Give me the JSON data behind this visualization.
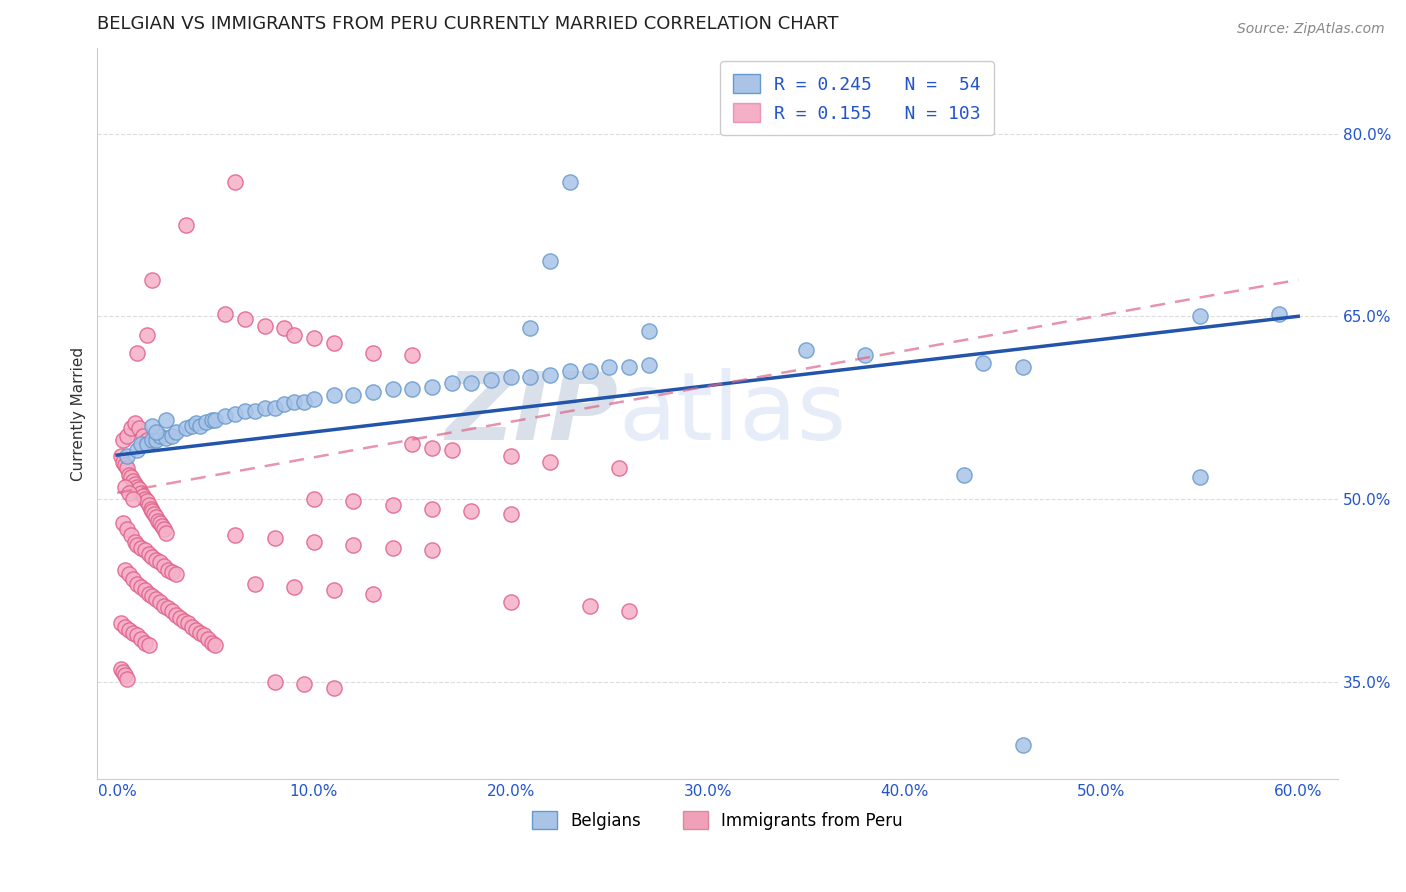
{
  "title": "BELGIAN VS IMMIGRANTS FROM PERU CURRENTLY MARRIED CORRELATION CHART",
  "source": "Source: ZipAtlas.com",
  "ylabel": "Currently Married",
  "x_tick_labels": [
    "0.0%",
    "10.0%",
    "20.0%",
    "30.0%",
    "40.0%",
    "50.0%",
    "60.0%"
  ],
  "x_tick_positions": [
    0.0,
    0.1,
    0.2,
    0.3,
    0.4,
    0.5,
    0.6
  ],
  "y_tick_labels": [
    "35.0%",
    "50.0%",
    "65.0%",
    "80.0%"
  ],
  "y_tick_positions": [
    0.35,
    0.5,
    0.65,
    0.8
  ],
  "xlim": [
    -0.01,
    0.62
  ],
  "ylim": [
    0.27,
    0.87
  ],
  "bottom_legend": [
    {
      "label": "Belgians",
      "color": "#aac4e8"
    },
    {
      "label": "Immigrants from Peru",
      "color": "#f0a0b8"
    }
  ],
  "belgian_scatter": [
    [
      0.005,
      0.535
    ],
    [
      0.01,
      0.54
    ],
    [
      0.012,
      0.545
    ],
    [
      0.015,
      0.545
    ],
    [
      0.018,
      0.548
    ],
    [
      0.02,
      0.548
    ],
    [
      0.022,
      0.552
    ],
    [
      0.025,
      0.55
    ],
    [
      0.028,
      0.552
    ],
    [
      0.03,
      0.555
    ],
    [
      0.035,
      0.558
    ],
    [
      0.038,
      0.56
    ],
    [
      0.04,
      0.562
    ],
    [
      0.042,
      0.56
    ],
    [
      0.045,
      0.563
    ],
    [
      0.048,
      0.565
    ],
    [
      0.05,
      0.565
    ],
    [
      0.055,
      0.568
    ],
    [
      0.06,
      0.57
    ],
    [
      0.065,
      0.572
    ],
    [
      0.07,
      0.572
    ],
    [
      0.075,
      0.575
    ],
    [
      0.08,
      0.575
    ],
    [
      0.085,
      0.578
    ],
    [
      0.09,
      0.58
    ],
    [
      0.095,
      0.58
    ],
    [
      0.1,
      0.582
    ],
    [
      0.11,
      0.585
    ],
    [
      0.12,
      0.585
    ],
    [
      0.13,
      0.588
    ],
    [
      0.14,
      0.59
    ],
    [
      0.15,
      0.59
    ],
    [
      0.16,
      0.592
    ],
    [
      0.17,
      0.595
    ],
    [
      0.18,
      0.595
    ],
    [
      0.19,
      0.598
    ],
    [
      0.2,
      0.6
    ],
    [
      0.21,
      0.6
    ],
    [
      0.22,
      0.602
    ],
    [
      0.23,
      0.605
    ],
    [
      0.24,
      0.605
    ],
    [
      0.25,
      0.608
    ],
    [
      0.26,
      0.608
    ],
    [
      0.27,
      0.61
    ],
    [
      0.018,
      0.56
    ],
    [
      0.02,
      0.555
    ],
    [
      0.025,
      0.565
    ],
    [
      0.23,
      0.76
    ],
    [
      0.22,
      0.695
    ],
    [
      0.21,
      0.64
    ],
    [
      0.27,
      0.638
    ],
    [
      0.35,
      0.622
    ],
    [
      0.38,
      0.618
    ],
    [
      0.44,
      0.612
    ],
    [
      0.46,
      0.608
    ],
    [
      0.55,
      0.65
    ],
    [
      0.59,
      0.652
    ],
    [
      0.43,
      0.52
    ],
    [
      0.55,
      0.518
    ],
    [
      0.46,
      0.298
    ]
  ],
  "peru_scatter": [
    [
      0.002,
      0.535
    ],
    [
      0.003,
      0.53
    ],
    [
      0.004,
      0.528
    ],
    [
      0.005,
      0.525
    ],
    [
      0.006,
      0.52
    ],
    [
      0.007,
      0.518
    ],
    [
      0.008,
      0.515
    ],
    [
      0.009,
      0.512
    ],
    [
      0.01,
      0.51
    ],
    [
      0.011,
      0.508
    ],
    [
      0.012,
      0.505
    ],
    [
      0.013,
      0.502
    ],
    [
      0.014,
      0.5
    ],
    [
      0.015,
      0.498
    ],
    [
      0.016,
      0.495
    ],
    [
      0.017,
      0.492
    ],
    [
      0.018,
      0.49
    ],
    [
      0.019,
      0.488
    ],
    [
      0.02,
      0.485
    ],
    [
      0.021,
      0.482
    ],
    [
      0.022,
      0.48
    ],
    [
      0.023,
      0.478
    ],
    [
      0.024,
      0.475
    ],
    [
      0.025,
      0.472
    ],
    [
      0.003,
      0.548
    ],
    [
      0.005,
      0.552
    ],
    [
      0.007,
      0.558
    ],
    [
      0.009,
      0.562
    ],
    [
      0.011,
      0.558
    ],
    [
      0.013,
      0.552
    ],
    [
      0.015,
      0.548
    ],
    [
      0.004,
      0.51
    ],
    [
      0.006,
      0.505
    ],
    [
      0.008,
      0.5
    ],
    [
      0.003,
      0.48
    ],
    [
      0.005,
      0.475
    ],
    [
      0.007,
      0.47
    ],
    [
      0.009,
      0.465
    ],
    [
      0.01,
      0.462
    ],
    [
      0.012,
      0.46
    ],
    [
      0.014,
      0.458
    ],
    [
      0.016,
      0.455
    ],
    [
      0.018,
      0.452
    ],
    [
      0.02,
      0.45
    ],
    [
      0.022,
      0.448
    ],
    [
      0.024,
      0.445
    ],
    [
      0.026,
      0.442
    ],
    [
      0.028,
      0.44
    ],
    [
      0.03,
      0.438
    ],
    [
      0.004,
      0.442
    ],
    [
      0.006,
      0.438
    ],
    [
      0.008,
      0.434
    ],
    [
      0.01,
      0.43
    ],
    [
      0.012,
      0.428
    ],
    [
      0.014,
      0.425
    ],
    [
      0.016,
      0.422
    ],
    [
      0.018,
      0.42
    ],
    [
      0.02,
      0.418
    ],
    [
      0.022,
      0.415
    ],
    [
      0.024,
      0.412
    ],
    [
      0.026,
      0.41
    ],
    [
      0.028,
      0.408
    ],
    [
      0.03,
      0.405
    ],
    [
      0.032,
      0.402
    ],
    [
      0.034,
      0.4
    ],
    [
      0.036,
      0.398
    ],
    [
      0.038,
      0.395
    ],
    [
      0.04,
      0.392
    ],
    [
      0.042,
      0.39
    ],
    [
      0.044,
      0.388
    ],
    [
      0.046,
      0.385
    ],
    [
      0.048,
      0.382
    ],
    [
      0.05,
      0.38
    ],
    [
      0.002,
      0.398
    ],
    [
      0.004,
      0.395
    ],
    [
      0.006,
      0.392
    ],
    [
      0.008,
      0.39
    ],
    [
      0.01,
      0.388
    ],
    [
      0.012,
      0.385
    ],
    [
      0.014,
      0.382
    ],
    [
      0.016,
      0.38
    ],
    [
      0.002,
      0.36
    ],
    [
      0.003,
      0.358
    ],
    [
      0.004,
      0.355
    ],
    [
      0.005,
      0.352
    ],
    [
      0.01,
      0.62
    ],
    [
      0.015,
      0.635
    ],
    [
      0.018,
      0.68
    ],
    [
      0.06,
      0.76
    ],
    [
      0.035,
      0.725
    ],
    [
      0.055,
      0.652
    ],
    [
      0.065,
      0.648
    ],
    [
      0.075,
      0.642
    ],
    [
      0.085,
      0.64
    ],
    [
      0.09,
      0.635
    ],
    [
      0.1,
      0.632
    ],
    [
      0.11,
      0.628
    ],
    [
      0.13,
      0.62
    ],
    [
      0.15,
      0.618
    ],
    [
      0.15,
      0.545
    ],
    [
      0.16,
      0.542
    ],
    [
      0.17,
      0.54
    ],
    [
      0.2,
      0.535
    ],
    [
      0.22,
      0.53
    ],
    [
      0.255,
      0.525
    ],
    [
      0.1,
      0.5
    ],
    [
      0.12,
      0.498
    ],
    [
      0.14,
      0.495
    ],
    [
      0.16,
      0.492
    ],
    [
      0.18,
      0.49
    ],
    [
      0.2,
      0.488
    ],
    [
      0.06,
      0.47
    ],
    [
      0.08,
      0.468
    ],
    [
      0.1,
      0.465
    ],
    [
      0.12,
      0.462
    ],
    [
      0.14,
      0.46
    ],
    [
      0.16,
      0.458
    ],
    [
      0.07,
      0.43
    ],
    [
      0.09,
      0.428
    ],
    [
      0.11,
      0.425
    ],
    [
      0.13,
      0.422
    ],
    [
      0.2,
      0.415
    ],
    [
      0.24,
      0.412
    ],
    [
      0.26,
      0.408
    ],
    [
      0.08,
      0.35
    ],
    [
      0.095,
      0.348
    ],
    [
      0.11,
      0.345
    ]
  ],
  "belgian_line": {
    "x": [
      0.0,
      0.6
    ],
    "y": [
      0.536,
      0.65
    ]
  },
  "peru_line": {
    "x": [
      0.0,
      0.6
    ],
    "y": [
      0.505,
      0.68
    ]
  },
  "watermark_zip": "ZIP",
  "watermark_atlas": "atlas",
  "watermark_color": "#d0ddf0",
  "scatter_size": 120,
  "belgian_color": "#aac4e8",
  "belgian_edge_color": "#6699cc",
  "peru_color": "#f5b0c8",
  "peru_edge_color": "#e0608888",
  "line_belgian_color": "#2255aa",
  "line_peru_color": "#dd6688",
  "grid_color": "#dddddd",
  "background_color": "#ffffff",
  "title_fontsize": 13,
  "axis_label_fontsize": 11,
  "tick_fontsize": 11,
  "source_fontsize": 10
}
